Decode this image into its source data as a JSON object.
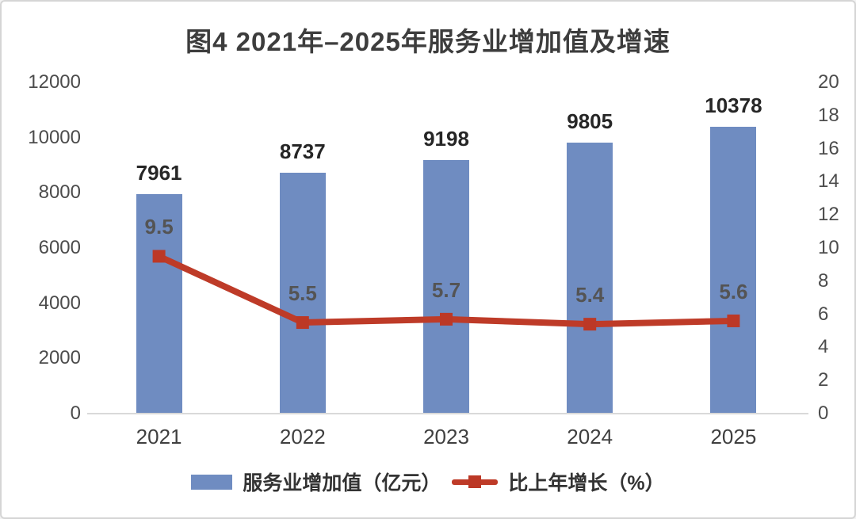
{
  "title": "图4  2021年–2025年服务业增加值及增速",
  "colors": {
    "bar": "#6f8cc1",
    "line": "#be3b28",
    "marker": "#bc3826",
    "baseline": "#d9d9d9",
    "title_text": "#3d3d3d",
    "tick_text": "#4c4c4c",
    "bar_value_text": "#262626",
    "rate_text": "#545454"
  },
  "chart_data": {
    "type": "bar+line combo",
    "title": "图4  2021年–2025年服务业增加值及增速",
    "categories": [
      "2021",
      "2022",
      "2023",
      "2024",
      "2025"
    ],
    "series": [
      {
        "name": "服务业增加值（亿元）",
        "type": "bar",
        "axis": "left",
        "values": [
          7961,
          8737,
          9198,
          9805,
          10378
        ]
      },
      {
        "name": "比上年增长（%）",
        "type": "line",
        "axis": "right",
        "values": [
          9.5,
          5.5,
          5.7,
          5.4,
          5.6
        ]
      }
    ],
    "left_axis": {
      "min": 0,
      "max": 12000,
      "step": 2000,
      "ticks": [
        0,
        2000,
        4000,
        6000,
        8000,
        10000,
        12000
      ]
    },
    "right_axis": {
      "min": 0,
      "max": 20,
      "step": 2,
      "ticks": [
        0,
        2,
        4,
        6,
        8,
        10,
        12,
        14,
        16,
        18,
        20
      ]
    },
    "grid": false,
    "legend_position": "bottom",
    "data_labels_shown": true
  },
  "legend": {
    "bar_label": "服务业增加值（亿元）",
    "line_label": "比上年增长（%）"
  }
}
